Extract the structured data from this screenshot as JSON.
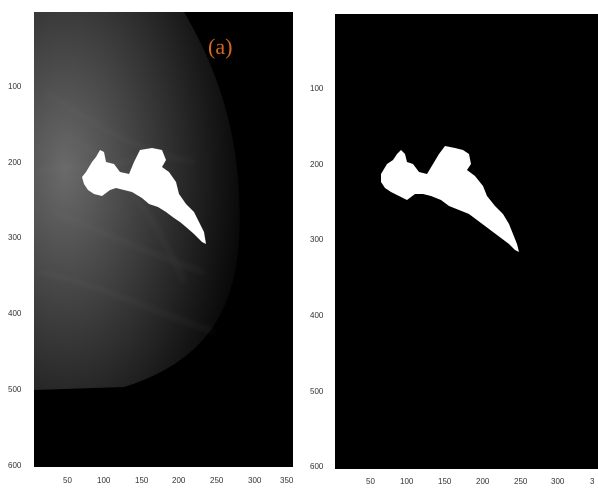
{
  "panels": [
    {
      "name": "mammogram-with-segmented-mass",
      "label": "(a)",
      "y_ticks": [
        "100",
        "200",
        "300",
        "400",
        "500",
        "600"
      ],
      "x_ticks": [
        "50",
        "100",
        "150",
        "200",
        "250",
        "300",
        "350"
      ]
    },
    {
      "name": "binary-mask",
      "label": "",
      "y_ticks": [
        "100",
        "200",
        "300",
        "400",
        "500",
        "600"
      ],
      "x_ticks": [
        "50",
        "100",
        "150",
        "200",
        "250",
        "300",
        "3"
      ]
    }
  ],
  "colors": {
    "background": "#000000",
    "mask": "#ffffff",
    "panel_label": "#d2691e"
  }
}
